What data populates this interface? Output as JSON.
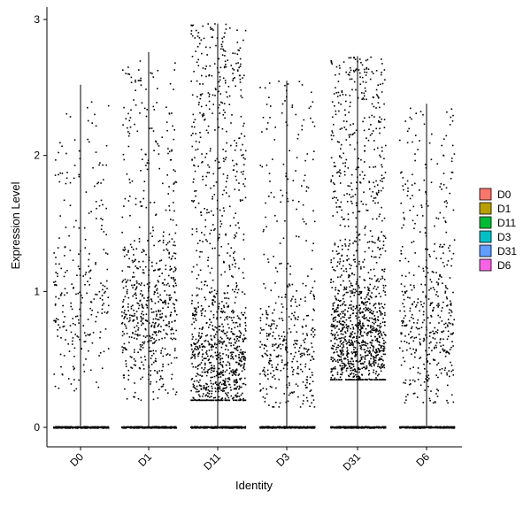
{
  "chart_data": {
    "type": "violin_jitter",
    "title": "",
    "xlabel": "Identity",
    "ylabel": "Expression Level",
    "categories": [
      "D0",
      "D1",
      "D11",
      "D3",
      "D31",
      "D6"
    ],
    "ylim": [
      -0.15,
      3.05
    ],
    "yticks": [
      0,
      1,
      2,
      3
    ],
    "grid": false,
    "legend_position": "right",
    "legend": {
      "entries": [
        {
          "label": "D0",
          "color": "#F8766D"
        },
        {
          "label": "D1",
          "color": "#B79F00"
        },
        {
          "label": "D11",
          "color": "#00BA38"
        },
        {
          "label": "D3",
          "color": "#00BFC4"
        },
        {
          "label": "D31",
          "color": "#619CFF"
        },
        {
          "label": "D6",
          "color": "#F564E3"
        }
      ]
    },
    "series": [
      {
        "name": "D0",
        "max": 2.52,
        "nonzero_count": 260,
        "nonzero_range": [
          0.25,
          2.5
        ],
        "center": 0.9
      },
      {
        "name": "D1",
        "max": 2.76,
        "nonzero_count": 650,
        "nonzero_range": [
          0.2,
          2.7
        ],
        "center": 0.9
      },
      {
        "name": "D11",
        "max": 2.97,
        "nonzero_count": 1150,
        "nonzero_range": [
          0.2,
          2.97
        ],
        "center": 0.45
      },
      {
        "name": "D3",
        "max": 2.55,
        "nonzero_count": 430,
        "nonzero_range": [
          0.15,
          2.55
        ],
        "center": 0.6
      },
      {
        "name": "D31",
        "max": 2.73,
        "nonzero_count": 1300,
        "nonzero_range": [
          0.35,
          2.73
        ],
        "center": 0.65
      },
      {
        "name": "D6",
        "max": 2.38,
        "nonzero_count": 470,
        "nonzero_range": [
          0.18,
          2.35
        ],
        "center": 0.8
      }
    ]
  }
}
